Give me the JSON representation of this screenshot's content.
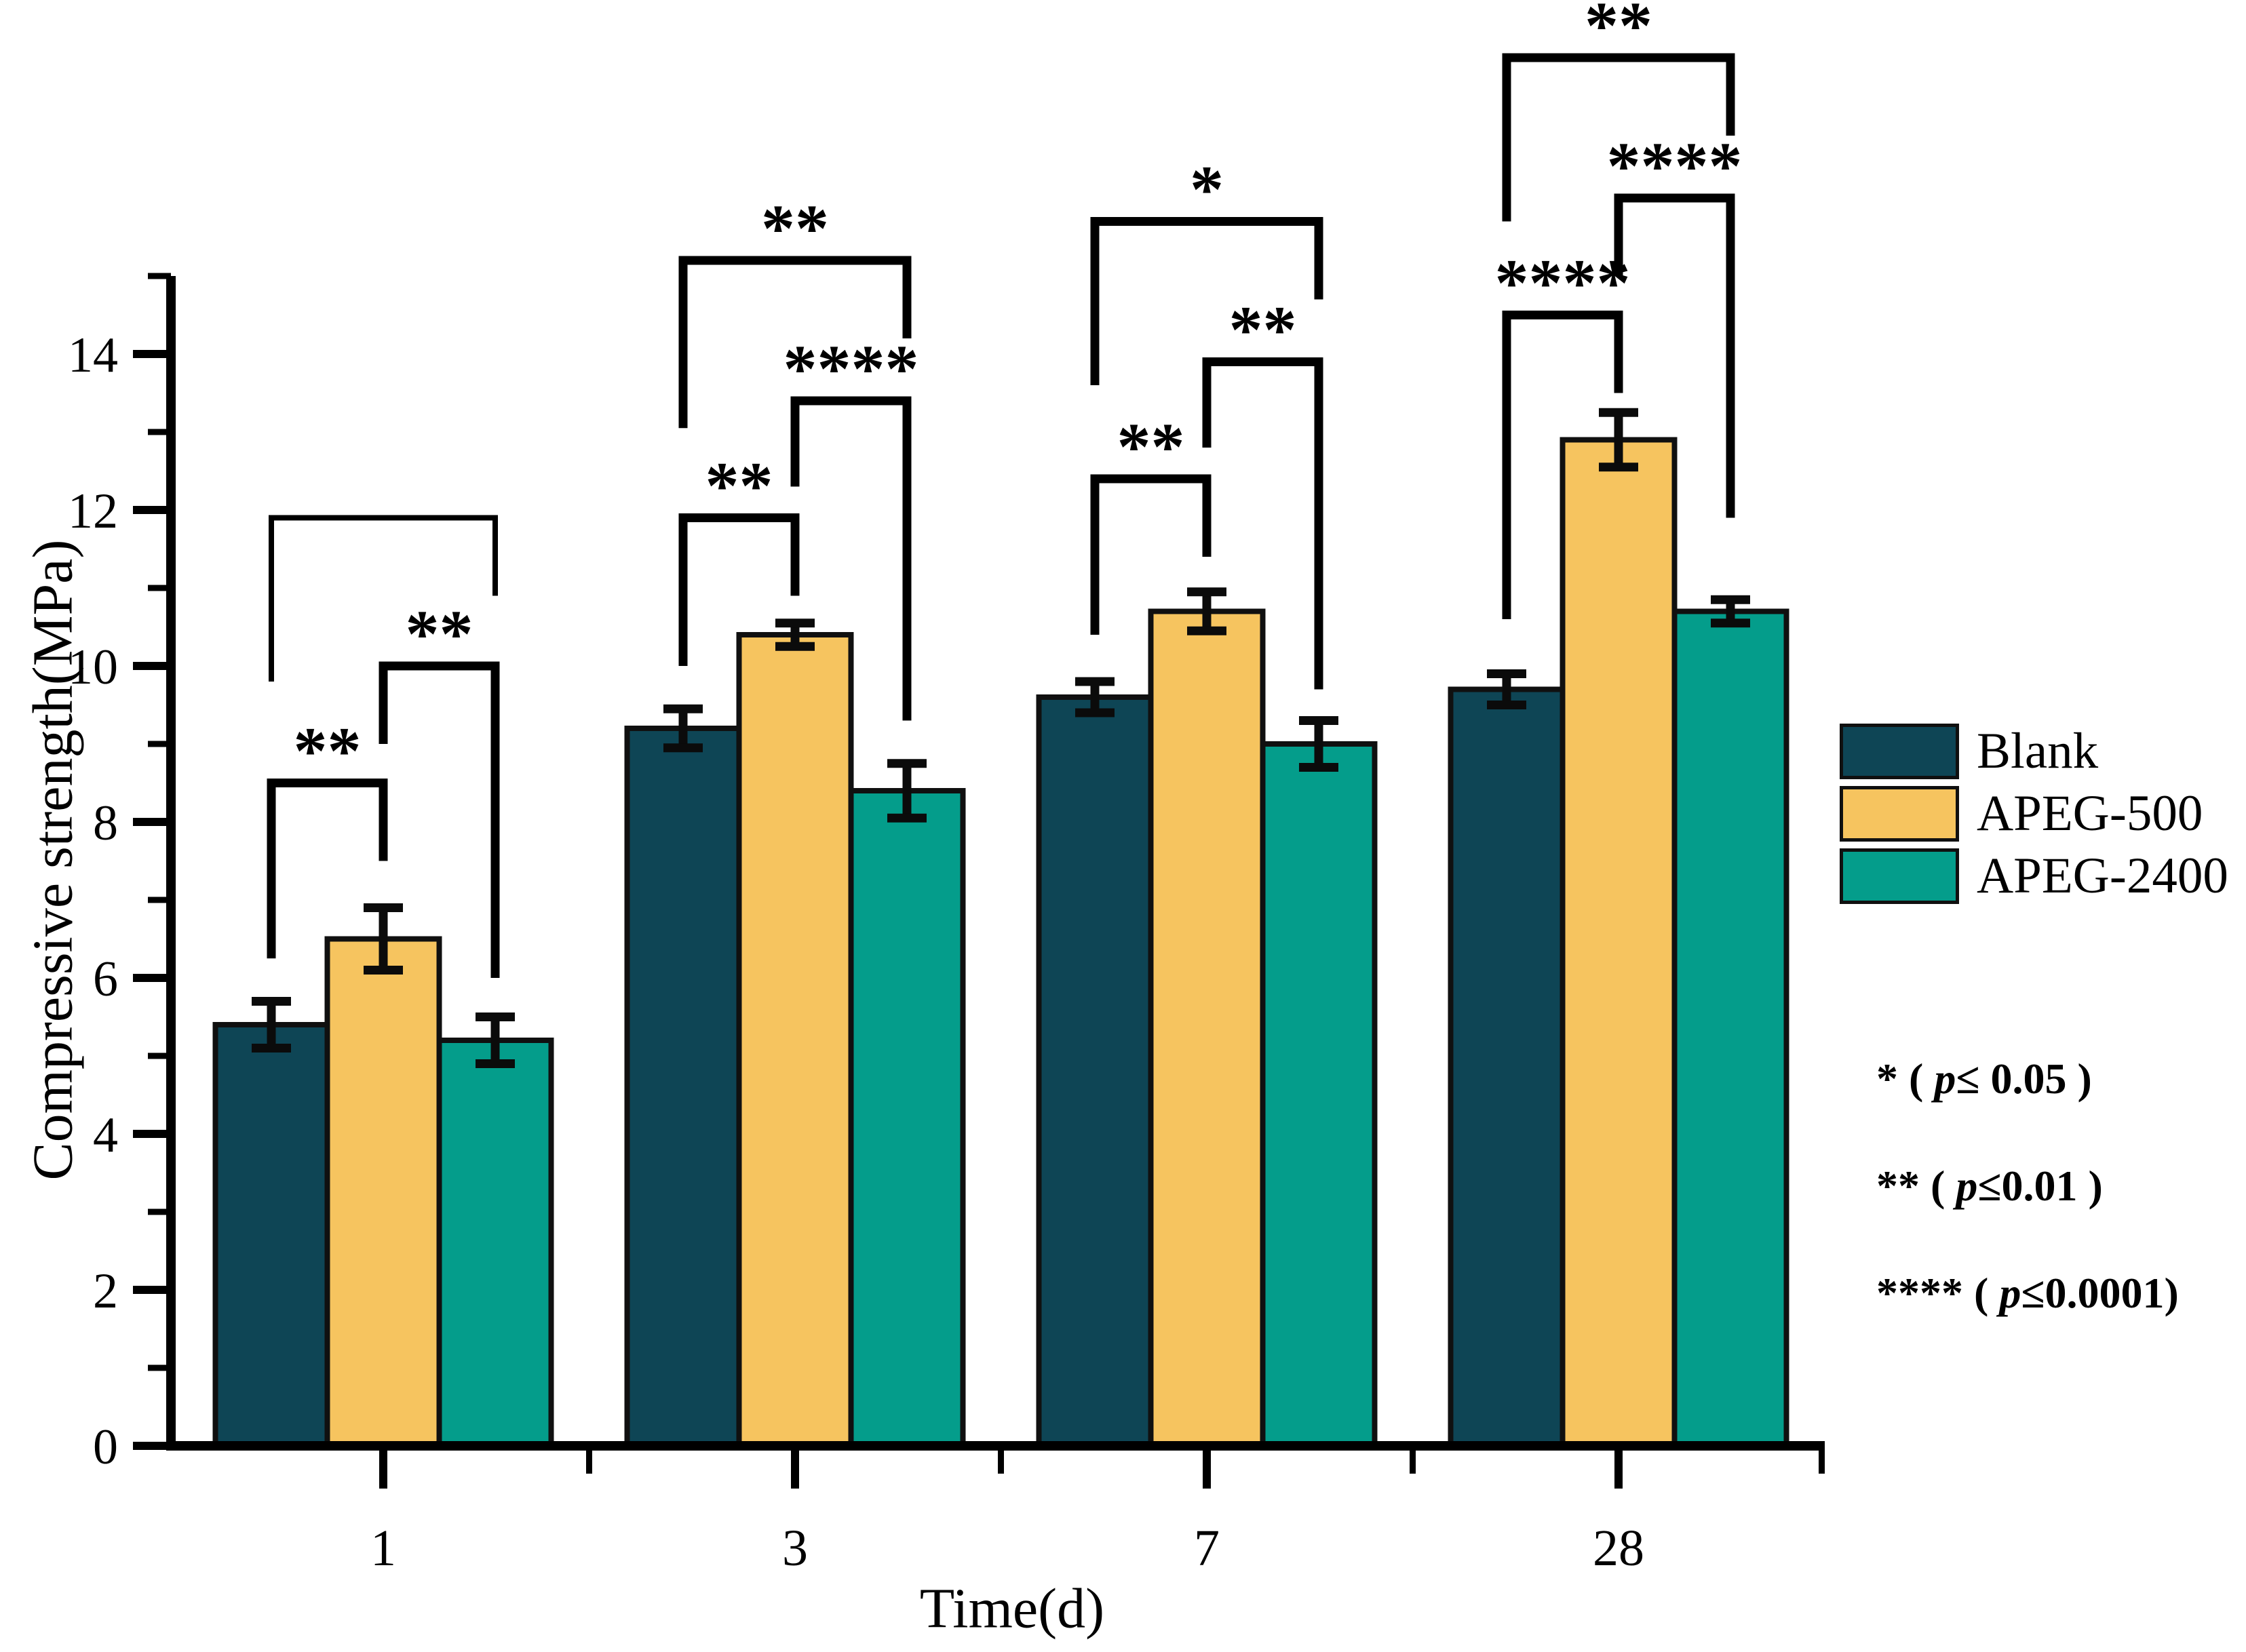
{
  "chart_data": {
    "type": "bar",
    "title": "",
    "xlabel": "Time(d)",
    "ylabel": "Compressive strength(MPa)",
    "categories": [
      "1",
      "3",
      "7",
      "28"
    ],
    "y_axis": {
      "min": 0,
      "max": 15,
      "major_tick_step": 2,
      "minor_tick_step": 1,
      "labeled_ticks": [
        0,
        2,
        4,
        6,
        8,
        10,
        12,
        14
      ]
    },
    "grid": "off",
    "legend_position": "right",
    "series": [
      {
        "name": "Blank",
        "color": "#0e4555",
        "values": [
          5.4,
          9.2,
          9.6,
          9.7
        ],
        "errors": [
          0.3,
          0.25,
          0.2,
          0.2
        ]
      },
      {
        "name": "APEG-500",
        "color": "#f6c45f",
        "values": [
          6.5,
          10.4,
          10.7,
          12.9
        ],
        "errors": [
          0.4,
          0.15,
          0.25,
          0.35
        ]
      },
      {
        "name": "APEG-2400",
        "color": "#049d8b",
        "values": [
          5.2,
          8.4,
          9.0,
          10.7
        ],
        "errors": [
          0.3,
          0.35,
          0.3,
          0.15
        ]
      }
    ],
    "significance_brackets": [
      {
        "group": 0,
        "from": 0,
        "to": 2,
        "label": "",
        "top": 11.9,
        "left_leg_end": 9.8,
        "right_leg_end": 10.9,
        "line_width": 8
      },
      {
        "group": 0,
        "from": 1,
        "to": 2,
        "label": "**",
        "top": 10.0,
        "left_leg_end": 9.0,
        "right_leg_end": 6.0,
        "line_width": 13
      },
      {
        "group": 0,
        "from": 0,
        "to": 1,
        "label": "**",
        "top": 8.5,
        "left_leg_end": 6.25,
        "right_leg_end": 7.5,
        "line_width": 13
      },
      {
        "group": 1,
        "from": 0,
        "to": 2,
        "label": "**",
        "top": 15.2,
        "left_leg_end": 13.05,
        "right_leg_end": 14.2,
        "line_width": 13
      },
      {
        "group": 1,
        "from": 1,
        "to": 2,
        "label": "****",
        "top": 13.4,
        "left_leg_end": 12.3,
        "right_leg_end": 9.3,
        "line_width": 13
      },
      {
        "group": 1,
        "from": 0,
        "to": 1,
        "label": "**",
        "top": 11.9,
        "left_leg_end": 10.0,
        "right_leg_end": 10.9,
        "line_width": 13
      },
      {
        "group": 2,
        "from": 0,
        "to": 2,
        "label": "*",
        "top": 15.7,
        "left_leg_end": 13.6,
        "right_leg_end": 14.7,
        "line_width": 13
      },
      {
        "group": 2,
        "from": 1,
        "to": 2,
        "label": "**",
        "top": 13.9,
        "left_leg_end": 12.8,
        "right_leg_end": 9.7,
        "line_width": 13
      },
      {
        "group": 2,
        "from": 0,
        "to": 1,
        "label": "**",
        "top": 12.4,
        "left_leg_end": 10.4,
        "right_leg_end": 11.4,
        "line_width": 13
      },
      {
        "group": 3,
        "from": 0,
        "to": 2,
        "label": "**",
        "top": 17.8,
        "left_leg_end": 15.7,
        "right_leg_end": 16.8,
        "line_width": 13
      },
      {
        "group": 3,
        "from": 1,
        "to": 2,
        "label": "****",
        "top": 16.0,
        "left_leg_end": 15.0,
        "right_leg_end": 11.9,
        "line_width": 13
      },
      {
        "group": 3,
        "from": 0,
        "to": 1,
        "label": "****",
        "top": 14.5,
        "left_leg_end": 10.6,
        "right_leg_end": 13.5,
        "line_width": 13
      }
    ],
    "significance_notes": [
      {
        "line": "* ( p≤ 0.05 )"
      },
      {
        "line": "** ( p≤0.01 )"
      },
      {
        "line": "**** ( p≤0.0001)"
      }
    ]
  }
}
